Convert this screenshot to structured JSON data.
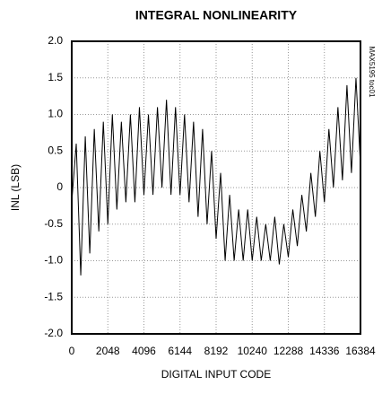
{
  "chart_data": {
    "type": "line",
    "title": "INTEGRAL NONLINEARITY",
    "side_note": "MAX5195 toc01",
    "x_label": "DIGITAL INPUT CODE",
    "y_label": "INL (LSB)",
    "x": [
      0,
      256,
      512,
      768,
      1024,
      1280,
      1536,
      1792,
      2048,
      2304,
      2560,
      2816,
      3072,
      3328,
      3584,
      3840,
      4096,
      4352,
      4608,
      4864,
      5120,
      5376,
      5632,
      5888,
      6144,
      6400,
      6656,
      6912,
      7168,
      7424,
      7680,
      7936,
      8192,
      8448,
      8704,
      8960,
      9216,
      9472,
      9728,
      9984,
      10240,
      10496,
      10752,
      11008,
      11264,
      11520,
      11776,
      12032,
      12288,
      12544,
      12800,
      13056,
      13312,
      13568,
      13824,
      14080,
      14336,
      14592,
      14848,
      15104,
      15360,
      15616,
      15872,
      16128,
      16384
    ],
    "series": [
      {
        "name": "INL",
        "color": "#000000",
        "values": [
          -0.2,
          0.6,
          -1.2,
          0.7,
          -0.9,
          0.8,
          -0.6,
          0.9,
          -0.5,
          1.0,
          -0.3,
          0.9,
          -0.2,
          1.0,
          -0.2,
          1.1,
          -0.1,
          1.0,
          -0.1,
          1.1,
          0.0,
          1.2,
          -0.1,
          1.1,
          -0.1,
          1.0,
          -0.2,
          0.9,
          -0.4,
          0.8,
          -0.5,
          0.5,
          -0.7,
          0.2,
          -1.0,
          -0.1,
          -1.0,
          -0.3,
          -1.0,
          -0.3,
          -1.0,
          -0.4,
          -1.0,
          -0.5,
          -1.0,
          -0.4,
          -1.05,
          -0.5,
          -0.95,
          -0.3,
          -0.8,
          -0.1,
          -0.6,
          0.2,
          -0.4,
          0.5,
          -0.2,
          0.8,
          0.0,
          1.1,
          0.1,
          1.4,
          0.2,
          1.5,
          0.3
        ]
      }
    ],
    "xlim": [
      0,
      16384
    ],
    "xticks": [
      0,
      2048,
      4096,
      6144,
      8192,
      10240,
      12288,
      14336,
      16384
    ],
    "ylim": [
      -2,
      2
    ],
    "yticks": [
      {
        "value": -2,
        "label": "-2.0"
      },
      {
        "value": -1.5,
        "label": "-1.5"
      },
      {
        "value": -1,
        "label": "-1.0"
      },
      {
        "value": -0.5,
        "label": "-0.5"
      },
      0,
      {
        "value": 0.5,
        "label": "0.5"
      },
      {
        "value": 1,
        "label": "1.0"
      },
      {
        "value": 1.5,
        "label": "1.5"
      },
      {
        "value": 2,
        "label": "2.0"
      }
    ],
    "grid": true
  }
}
